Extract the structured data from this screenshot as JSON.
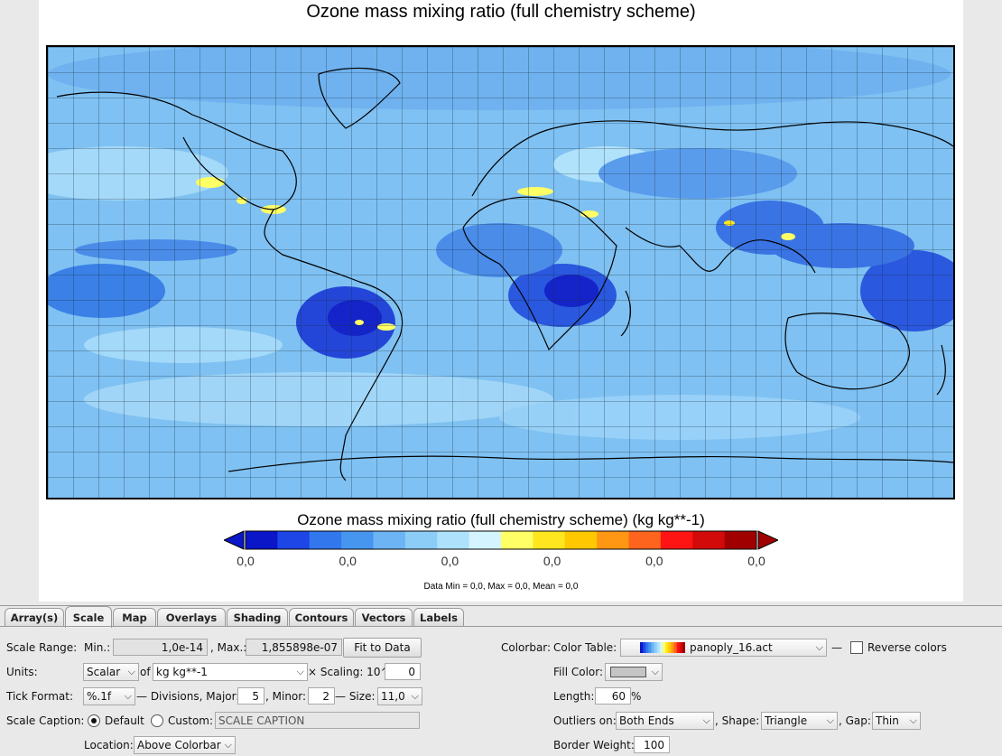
{
  "plot": {
    "title": "Ozone mass mixing ratio (full chemistry scheme)",
    "colorbar_title": "Ozone mass mixing ratio (full chemistry scheme) (kg kg**-1)",
    "tick_labels": [
      "0,0",
      "0,0",
      "0,0",
      "0,0",
      "0,0",
      "0,0"
    ],
    "data_stats": "Data Min = 0,0, Max = 0,0, Mean = 0,0",
    "palette": [
      "#0a16c8",
      "#1e46e6",
      "#3278ec",
      "#4696f0",
      "#6cb4f4",
      "#8ccdf8",
      "#aee2fc",
      "#d4f4ff",
      "#ffff66",
      "#ffe61e",
      "#ffc800",
      "#ff9614",
      "#ff641e",
      "#ff1414",
      "#d20a0a",
      "#a00000"
    ],
    "outlier_low_color": "#0a16c8",
    "outlier_high_color": "#a00000"
  },
  "tabs": [
    {
      "label": "Array(s)",
      "active": false
    },
    {
      "label": "Scale",
      "active": true
    },
    {
      "label": "Map",
      "active": false
    },
    {
      "label": "Overlays",
      "active": false
    },
    {
      "label": "Shading",
      "active": false
    },
    {
      "label": "Contours",
      "active": false
    },
    {
      "label": "Vectors",
      "active": false
    },
    {
      "label": "Labels",
      "active": false
    }
  ],
  "scale": {
    "range_label": "Scale Range:",
    "min_label": "Min.:",
    "min_value": "1,0e-14",
    "max_label": ", Max.:",
    "max_value": "1,855898e-07",
    "fit_button": "Fit to Data",
    "units_label": "Units:",
    "units_type": "Scalar",
    "of_label": "of",
    "units_value": "kg kg**-1",
    "scaling_label": "× Scaling: 10^",
    "scaling_value": "0",
    "tick_format_label": "Tick Format:",
    "tick_format": "%.1f",
    "divisions_label": "— Divisions, Major:",
    "major_value": "5",
    "minor_label": ", Minor:",
    "minor_value": "2",
    "size_label": "— Size:",
    "size_value": "11,0",
    "caption_label": "Scale Caption:",
    "caption_default": "Default",
    "caption_custom": "Custom:",
    "caption_placeholder": "SCALE CAPTION",
    "location_label": "Location:",
    "location_value": "Above Colorbar"
  },
  "colorbar": {
    "label": "Colorbar:",
    "table_label": "Color Table:",
    "table_value": "panoply_16.act",
    "dash": "—",
    "reverse_label": "Reverse colors",
    "fill_label": "Fill Color:",
    "fill_color": "#c4c4c4",
    "length_label": "Length:",
    "length_value": "60",
    "length_unit": "%",
    "outliers_label": "Outliers on:",
    "outliers_value": "Both Ends",
    "shape_label": ", Shape:",
    "shape_value": "Triangle",
    "gap_label": ", Gap:",
    "gap_value": "Thin",
    "border_label": "Border Weight:",
    "border_value": "100"
  }
}
